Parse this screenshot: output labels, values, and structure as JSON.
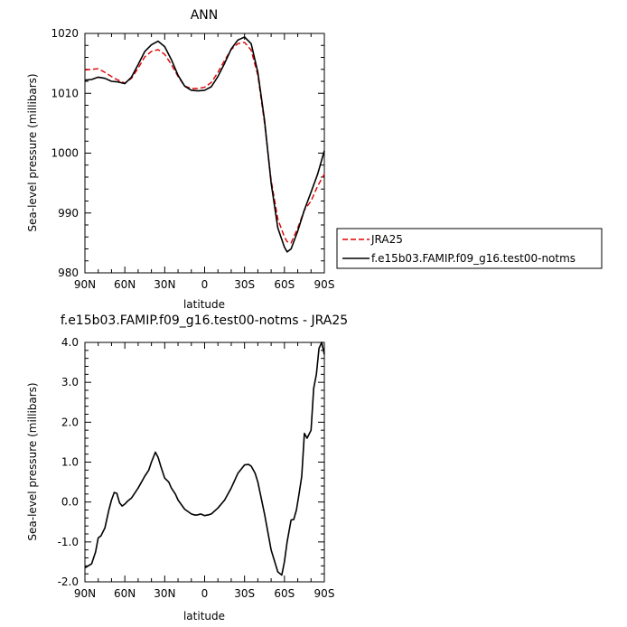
{
  "colors": {
    "black": "#000000",
    "red": "#dd0000"
  },
  "chart_data": [
    {
      "type": "line",
      "title": "ANN",
      "xlabel": "latitude",
      "ylabel": "Sea-level pressure (millibars)",
      "xlim": [
        90,
        -90
      ],
      "ylim": [
        980,
        1020
      ],
      "xticks": [
        90,
        60,
        30,
        0,
        -30,
        -60,
        -90
      ],
      "xtick_labels": [
        "90N",
        "60N",
        "30N",
        "0",
        "30S",
        "60S",
        "90S"
      ],
      "yticks": [
        980,
        990,
        1000,
        1010,
        1020
      ],
      "ytick_labels": [
        "980",
        "990",
        "1000",
        "1010",
        "1020"
      ],
      "legend_position": "right",
      "series": [
        {
          "name": "JRA25",
          "color": "#dd0000",
          "dash": true,
          "x": [
            90,
            80,
            75,
            70,
            65,
            60,
            55,
            50,
            45,
            40,
            35,
            30,
            25,
            20,
            15,
            10,
            5,
            0,
            -5,
            -10,
            -15,
            -20,
            -25,
            -30,
            -35,
            -40,
            -45,
            -50,
            -55,
            -60,
            -62,
            -65,
            -70,
            -75,
            -80,
            -85,
            -90
          ],
          "y": [
            1013.9,
            1014.1,
            1013.5,
            1012.8,
            1012.2,
            1011.7,
            1012.5,
            1014.2,
            1016.1,
            1017.0,
            1017.3,
            1016.5,
            1014.8,
            1012.8,
            1011.2,
            1010.8,
            1010.8,
            1011.0,
            1011.8,
            1013.5,
            1015.5,
            1017.3,
            1018.3,
            1018.5,
            1017.2,
            1013.0,
            1005.0,
            995.5,
            989.0,
            986.0,
            985.2,
            985.0,
            987.5,
            990.5,
            992.0,
            994.5,
            996.5
          ]
        },
        {
          "name": "f.e15b03.FAMIP.f09_g16.test00-notms",
          "color": "#000000",
          "dash": false,
          "x": [
            90,
            85,
            80,
            75,
            70,
            65,
            60,
            55,
            50,
            45,
            40,
            35,
            30,
            25,
            20,
            15,
            10,
            5,
            0,
            -5,
            -10,
            -15,
            -20,
            -25,
            -30,
            -35,
            -40,
            -45,
            -50,
            -55,
            -60,
            -62,
            -65,
            -70,
            -75,
            -80,
            -85,
            -90
          ],
          "y": [
            1012.2,
            1012.3,
            1012.7,
            1012.5,
            1012.0,
            1011.9,
            1011.6,
            1012.7,
            1014.8,
            1017.0,
            1018.1,
            1018.7,
            1017.8,
            1015.6,
            1013.0,
            1011.2,
            1010.5,
            1010.4,
            1010.5,
            1011.1,
            1012.8,
            1015.0,
            1017.4,
            1018.9,
            1019.4,
            1018.3,
            1013.5,
            1005.5,
            995.0,
            987.5,
            984.3,
            983.5,
            984.0,
            987.0,
            990.5,
            993.5,
            996.5,
            1000.4
          ]
        }
      ]
    },
    {
      "type": "line",
      "title": "f.e15b03.FAMIP.f09_g16.test00-notms - JRA25",
      "xlabel": "latitude",
      "ylabel": "Sea-level pressure (millibars)",
      "xlim": [
        90,
        -90
      ],
      "ylim": [
        -2.0,
        4.0
      ],
      "xticks": [
        90,
        60,
        30,
        0,
        -30,
        -60,
        -90
      ],
      "xtick_labels": [
        "90N",
        "60N",
        "30N",
        "0",
        "30S",
        "60S",
        "90S"
      ],
      "yticks": [
        -2,
        -1,
        0,
        1,
        2,
        3,
        4
      ],
      "ytick_labels": [
        "-2.0",
        "-1.0",
        "0.0",
        "1.0",
        "2.0",
        "3.0",
        "4.0"
      ],
      "series": [
        {
          "color": "#000000",
          "dash": false,
          "x": [
            90,
            85,
            82,
            80,
            78,
            75,
            72,
            70,
            68,
            66,
            64,
            62,
            60,
            58,
            55,
            50,
            45,
            42,
            40,
            37,
            35,
            33,
            30,
            27,
            25,
            22,
            20,
            15,
            10,
            7,
            5,
            3,
            0,
            -3,
            -5,
            -10,
            -15,
            -20,
            -25,
            -30,
            -33,
            -35,
            -38,
            -40,
            -45,
            -50,
            -55,
            -58,
            -60,
            -62,
            -65,
            -67,
            -69,
            -71,
            -73,
            -75,
            -77,
            -80,
            -82,
            -84,
            -86,
            -88,
            -89,
            -90
          ],
          "y": [
            -1.65,
            -1.55,
            -1.25,
            -0.9,
            -0.85,
            -0.65,
            -0.2,
            0.05,
            0.24,
            0.22,
            -0.02,
            -0.1,
            -0.05,
            0.02,
            0.1,
            0.35,
            0.65,
            0.8,
            1.0,
            1.25,
            1.12,
            0.9,
            0.6,
            0.5,
            0.35,
            0.2,
            0.05,
            -0.18,
            -0.3,
            -0.33,
            -0.32,
            -0.3,
            -0.34,
            -0.32,
            -0.3,
            -0.15,
            0.05,
            0.35,
            0.72,
            0.93,
            0.94,
            0.9,
            0.72,
            0.5,
            -0.3,
            -1.2,
            -1.75,
            -1.83,
            -1.5,
            -1.0,
            -0.45,
            -0.44,
            -0.2,
            0.2,
            0.65,
            1.72,
            1.6,
            1.8,
            2.85,
            3.2,
            3.85,
            4.0,
            3.85,
            3.7
          ]
        }
      ]
    }
  ]
}
